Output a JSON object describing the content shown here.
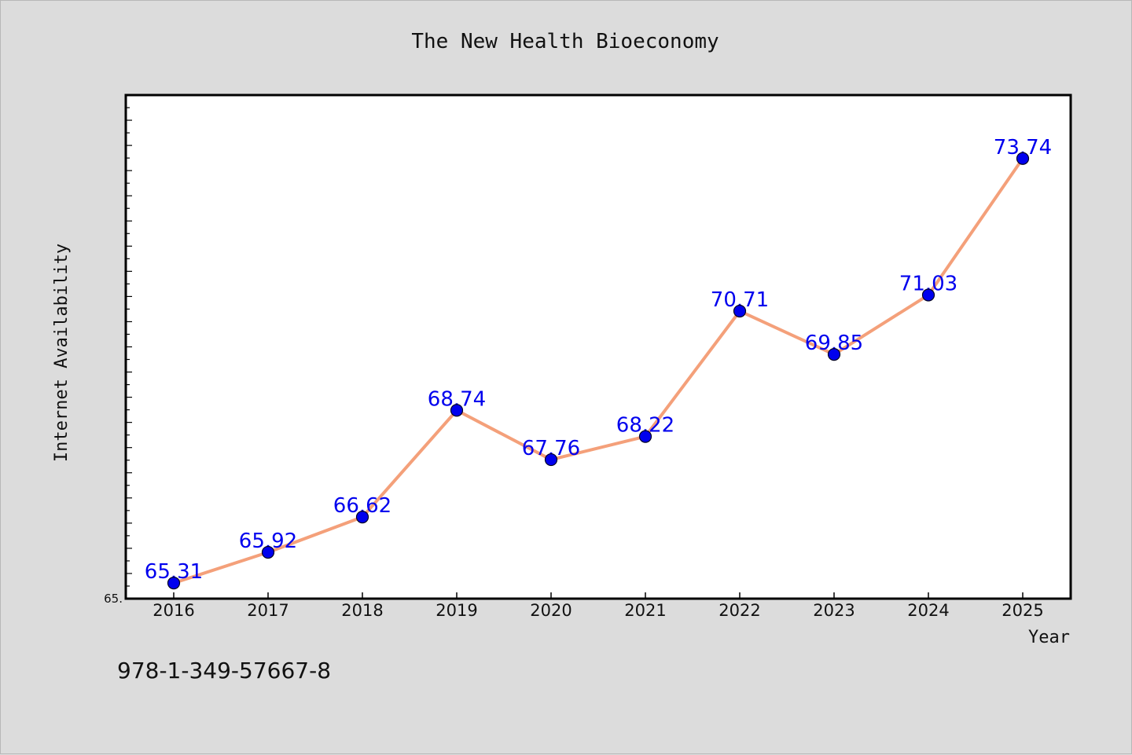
{
  "chart_data": {
    "type": "line",
    "title": "The New Health Bioeconomy",
    "xlabel": "Year",
    "ylabel": "Internet Availability",
    "categories": [
      "2016",
      "2017",
      "2018",
      "2019",
      "2020",
      "2021",
      "2022",
      "2023",
      "2024",
      "2025"
    ],
    "series": [
      {
        "values": [
          65.31,
          65.92,
          66.62,
          68.74,
          67.76,
          68.22,
          70.71,
          69.85,
          71.03,
          73.74
        ],
        "data_labels": [
          "65.31",
          "65.92",
          "66.62",
          "68.74",
          "67.76",
          "68.22",
          "70.71",
          "69.85",
          "71.03",
          "73.74"
        ],
        "line_color": "#f4a07a",
        "marker_color": "#0000ee"
      }
    ],
    "ylim": [
      65.0,
      75.0
    ],
    "y_tick_labels": [
      "65."
    ],
    "grid": false,
    "legend": "none",
    "label_color": "#0000ee"
  },
  "footer_text": "978-1-349-57667-8"
}
